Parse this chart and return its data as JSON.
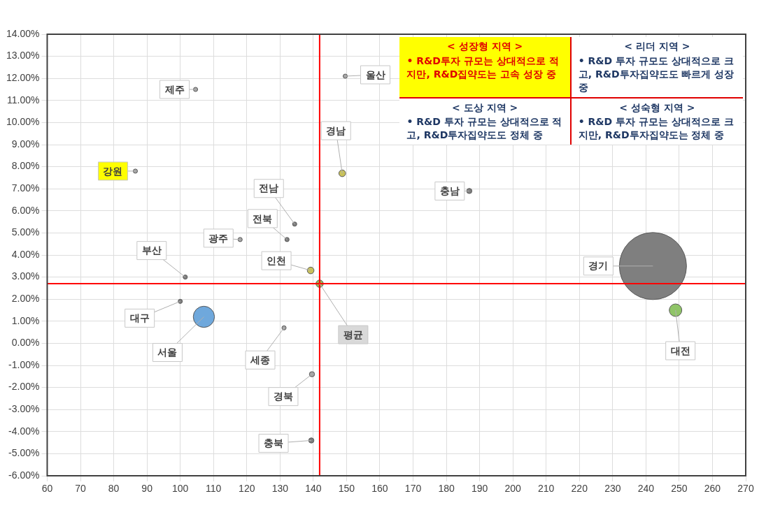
{
  "chart_data": {
    "type": "bubble",
    "series": [
      {
        "name": "울산",
        "color": "#a6a6a6",
        "x": [
          149.6
        ],
        "values": [
          12.1
        ],
        "sizes": [
          0.004
        ]
      },
      {
        "name": "제주",
        "color": "#a6a6a6",
        "x": [
          104.6
        ],
        "values": [
          11.5
        ],
        "sizes": [
          0.004
        ]
      },
      {
        "name": "강원",
        "color": "#a6a6a6",
        "x": [
          86.5
        ],
        "values": [
          7.8
        ],
        "sizes": [
          0.004
        ]
      },
      {
        "name": "경남",
        "color": "#c9c25a",
        "x": [
          148.7
        ],
        "values": [
          7.7
        ],
        "sizes": [
          0.01
        ]
      },
      {
        "name": "충남",
        "color": "#7f7f7f",
        "x": [
          186.9
        ],
        "values": [
          6.9
        ],
        "sizes": [
          0.006
        ]
      },
      {
        "name": "전남",
        "color": "#7f7f7f",
        "x": [
          134.4
        ],
        "values": [
          5.4
        ],
        "sizes": [
          0.004
        ]
      },
      {
        "name": "전북",
        "color": "#7f7f7f",
        "x": [
          132.1
        ],
        "values": [
          4.7
        ],
        "sizes": [
          0.004
        ]
      },
      {
        "name": "광주",
        "color": "#a6a6a6",
        "x": [
          118
        ],
        "values": [
          4.7
        ],
        "sizes": [
          0.004
        ]
      },
      {
        "name": "인천",
        "color": "#c9c25a",
        "x": [
          139.2
        ],
        "values": [
          3.3
        ],
        "sizes": [
          0.01
        ]
      },
      {
        "name": "부산",
        "color": "#7f7f7f",
        "x": [
          101.5
        ],
        "values": [
          3.0
        ],
        "sizes": [
          0.004
        ]
      },
      {
        "name": "평균",
        "color": "#9bbb59",
        "x": [
          141.9
        ],
        "values": [
          2.7
        ],
        "sizes": [
          0.012
        ]
      },
      {
        "name": "경기",
        "color": "#7f7f7f",
        "x": [
          242.1
        ],
        "values": [
          3.5
        ],
        "sizes": [
          1
        ]
      },
      {
        "name": "대전",
        "color": "#8fc467",
        "x": [
          248.9
        ],
        "values": [
          1.5
        ],
        "sizes": [
          0.035
        ]
      },
      {
        "name": "대구",
        "color": "#7f7f7f",
        "x": [
          100
        ],
        "values": [
          1.9
        ],
        "sizes": [
          0.004
        ]
      },
      {
        "name": "서울",
        "color": "#6fa8dc",
        "x": [
          107.1
        ],
        "values": [
          1.2
        ],
        "sizes": [
          0.1
        ]
      },
      {
        "name": "세종",
        "color": "#a6a6a6",
        "x": [
          131.2
        ],
        "values": [
          0.7
        ],
        "sizes": [
          0.004
        ]
      },
      {
        "name": "경북",
        "color": "#a6a6a6",
        "x": [
          139.6
        ],
        "values": [
          -1.4
        ],
        "sizes": [
          0.006
        ]
      },
      {
        "name": "충북",
        "color": "#7f7f7f",
        "x": [
          139.4
        ],
        "values": [
          -4.4
        ],
        "sizes": [
          0.006
        ]
      }
    ],
    "xlim": [
      60,
      270
    ],
    "xticks": [
      60,
      70,
      80,
      90,
      100,
      110,
      120,
      130,
      140,
      150,
      160,
      170,
      180,
      190,
      200,
      210,
      220,
      230,
      240,
      250,
      260,
      270
    ],
    "ylim": [
      -6,
      14
    ],
    "yticks": [
      {
        "value": -6,
        "label": "-6.00%"
      },
      {
        "value": -5,
        "label": "-5.00%"
      },
      {
        "value": -4,
        "label": "-4.00%"
      },
      {
        "value": -3,
        "label": "-3.00%"
      },
      {
        "value": -2,
        "label": "-2.00%"
      },
      {
        "value": -1,
        "label": "-1.00%"
      },
      {
        "value": 0,
        "label": "0.00%"
      },
      {
        "value": 1,
        "label": "1.00%"
      },
      {
        "value": 2,
        "label": "2.00%"
      },
      {
        "value": 3,
        "label": "3.00%"
      },
      {
        "value": 4,
        "label": "4.00%"
      },
      {
        "value": 5,
        "label": "5.00%"
      },
      {
        "value": 6,
        "label": "6.00%"
      },
      {
        "value": 7,
        "label": "7.00%"
      },
      {
        "value": 8,
        "label": "8.00%"
      },
      {
        "value": 9,
        "label": "9.00%"
      },
      {
        "value": 10,
        "label": "10.00%"
      },
      {
        "value": 11,
        "label": "11.00%"
      },
      {
        "value": 12,
        "label": "12.00%"
      },
      {
        "value": 13,
        "label": "13.00%"
      },
      {
        "value": 14,
        "label": "14.00%"
      }
    ],
    "ref_lines": [
      {
        "axis": "x",
        "value": 141.9,
        "color": "#ff0000"
      },
      {
        "axis": "y",
        "value": 2.7,
        "color": "#ff0000"
      }
    ],
    "annotations": [
      "< 성장형 지역 >",
      "• R&D투자 규모는 상대적으로 적지만, R&D집약도는 고속 성장 중",
      "< 리더 지역 >",
      "• R&D 투자 규모도 상대적으로 크고, R&D투자집약도도 빠르게 성장 중",
      "< 도상 지역 >",
      "• R&D 투자 규모는 상대적으로 적고, R&D투자집약도도 정체 중",
      "< 성숙형 지역 >",
      "• R&D 투자 규모는 상대적으로 크지만, R&D투자집약도는 정체 중"
    ],
    "grid": true,
    "legend": false
  }
}
